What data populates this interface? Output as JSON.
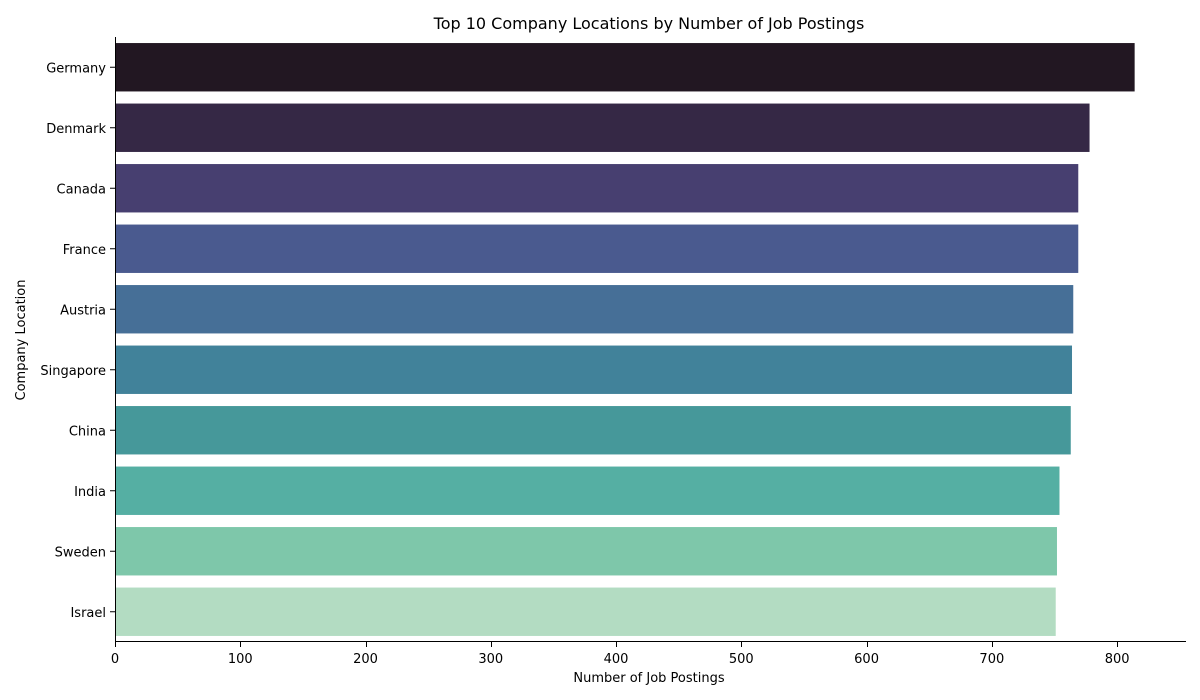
{
  "chart_data": {
    "type": "bar",
    "orientation": "horizontal",
    "title": "Top 10 Company Locations by Number of Job Postings",
    "xlabel": "Number of Job Postings",
    "ylabel": "Company Location",
    "categories": [
      "Germany",
      "Denmark",
      "Canada",
      "France",
      "Austria",
      "Singapore",
      "China",
      "India",
      "Sweden",
      "Israel"
    ],
    "values": [
      814,
      778,
      769,
      769,
      765,
      764,
      763,
      754,
      752,
      751
    ],
    "colors": [
      "#221722",
      "#352845",
      "#473f70",
      "#4a5a8f",
      "#466f97",
      "#41829a",
      "#46989a",
      "#55afa3",
      "#7ec7aa",
      "#b3dcc2"
    ],
    "xlim": [
      0,
      855
    ],
    "xticks": [
      0,
      100,
      200,
      300,
      400,
      500,
      600,
      700,
      800
    ],
    "grid": false,
    "legend": "none"
  }
}
